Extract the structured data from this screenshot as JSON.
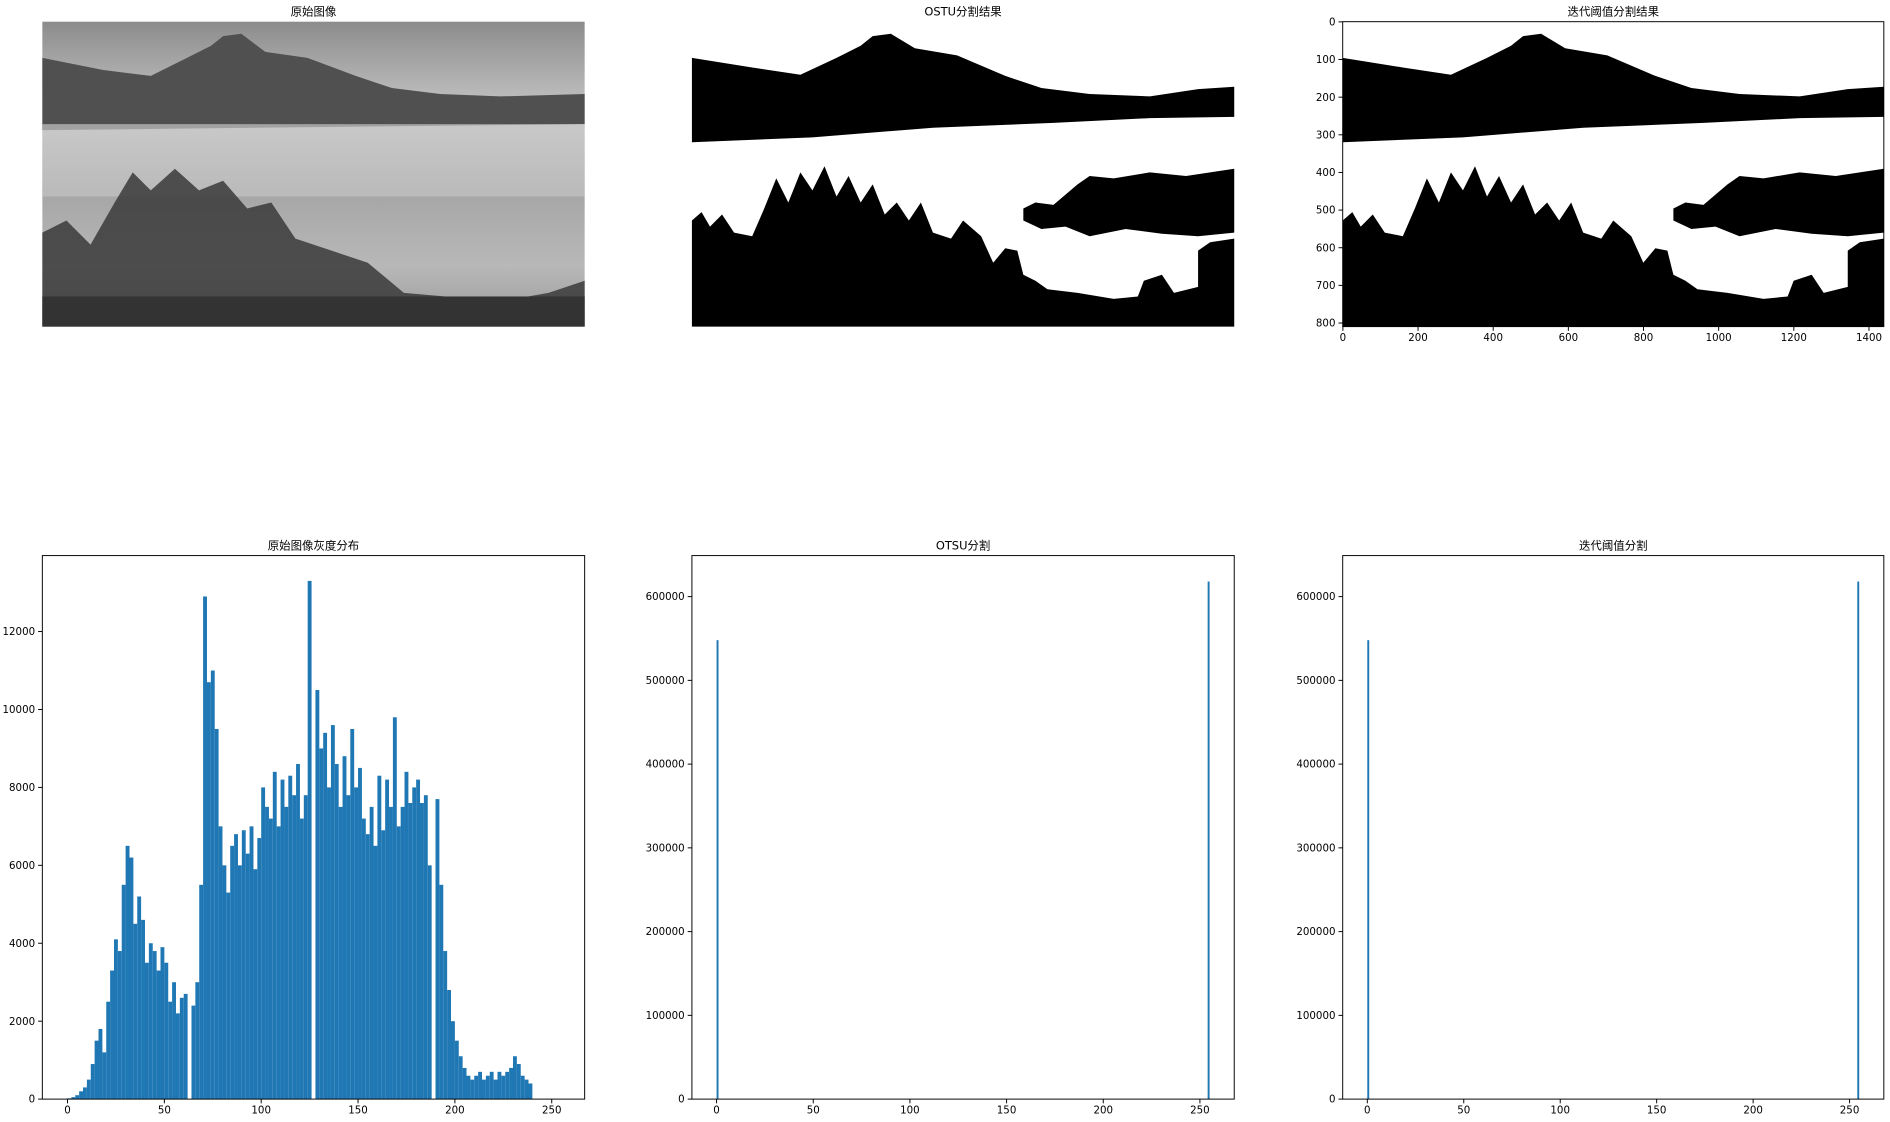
{
  "chart_data": [
    {
      "type": "image",
      "title": "原始图像"
    },
    {
      "type": "image",
      "title": "OSTU分割结果"
    },
    {
      "type": "image",
      "title": "迭代阈值分割结果",
      "xlim": [
        -0.5,
        1439.5
      ],
      "ylim": [
        809.5,
        -0.5
      ],
      "xticks": [
        0,
        200,
        400,
        600,
        800,
        1000,
        1200,
        1400
      ],
      "yticks": [
        0,
        100,
        200,
        300,
        400,
        500,
        600,
        700,
        800
      ]
    },
    {
      "type": "histogram",
      "title": "原始图像灰度分布",
      "color": "#1f77b4",
      "bins": [
        0,
        2,
        4,
        6,
        8,
        10,
        12,
        14,
        16,
        18,
        20,
        22,
        24,
        26,
        28,
        30,
        32,
        34,
        36,
        38,
        40,
        42,
        44,
        46,
        48,
        50,
        52,
        54,
        56,
        58,
        60,
        62,
        64,
        66,
        68,
        70,
        72,
        74,
        76,
        78,
        80,
        82,
        84,
        86,
        88,
        90,
        92,
        94,
        96,
        98,
        100,
        102,
        104,
        106,
        108,
        110,
        112,
        114,
        116,
        118,
        120,
        122,
        124,
        126,
        128,
        130,
        132,
        134,
        136,
        138,
        140,
        142,
        144,
        146,
        148,
        150,
        152,
        154,
        156,
        158,
        160,
        162,
        164,
        166,
        168,
        170,
        172,
        174,
        176,
        178,
        180,
        182,
        184,
        186,
        188,
        190,
        192,
        194,
        196,
        198,
        200,
        202,
        204,
        206,
        208,
        210,
        212,
        214,
        216,
        218,
        220,
        222,
        224,
        226,
        228,
        230,
        232,
        234,
        236,
        238,
        240
      ],
      "counts": [
        20,
        50,
        100,
        200,
        300,
        500,
        900,
        1500,
        1800,
        1200,
        2500,
        3300,
        4100,
        3800,
        5500,
        6500,
        6200,
        4500,
        5200,
        4600,
        3500,
        4000,
        3800,
        3300,
        3900,
        3500,
        2500,
        3000,
        2200,
        2600,
        2700,
        0,
        2400,
        3000,
        5500,
        12900,
        10700,
        11000,
        9500,
        7000,
        6000,
        5300,
        6500,
        6800,
        6000,
        6900,
        6300,
        7000,
        5900,
        6700,
        8000,
        7500,
        7200,
        8400,
        7000,
        8200,
        7500,
        8300,
        7800,
        8600,
        7200,
        7800,
        13300,
        0,
        10500,
        9000,
        9400,
        8000,
        9600,
        8600,
        7500,
        8800,
        7800,
        9500,
        8000,
        8500,
        7200,
        6800,
        7500,
        6500,
        8300,
        6900,
        8200,
        7500,
        9800,
        7000,
        7500,
        8400,
        7600,
        8000,
        8200,
        7600,
        7800,
        6000,
        0,
        7700,
        5500,
        3800,
        2800,
        2000,
        1500,
        1100,
        800,
        600,
        500,
        600,
        700,
        500,
        600,
        700,
        500,
        700,
        600,
        700,
        800,
        1100,
        900,
        600,
        500,
        400
      ],
      "xlim": [
        -13,
        267
      ],
      "ylim": [
        0,
        13950
      ],
      "xticks": [
        0,
        50,
        100,
        150,
        200,
        250
      ],
      "yticks": [
        0,
        2000,
        4000,
        6000,
        8000,
        10000,
        12000
      ]
    },
    {
      "type": "histogram",
      "title": "OTSU分割",
      "color": "#1f77b4",
      "bins": [
        0,
        1,
        254,
        255
      ],
      "counts": [
        548000,
        0,
        618000
      ],
      "xlim": [
        -12.75,
        267.75
      ],
      "ylim": [
        0,
        649000
      ],
      "xticks": [
        0,
        50,
        100,
        150,
        200,
        250
      ],
      "yticks": [
        0,
        100000,
        200000,
        300000,
        400000,
        500000,
        600000
      ]
    },
    {
      "type": "histogram",
      "title": "迭代阈值分割",
      "color": "#1f77b4",
      "bins": [
        0,
        1,
        254,
        255
      ],
      "counts": [
        548000,
        0,
        618000
      ],
      "xlim": [
        -12.75,
        267.75
      ],
      "ylim": [
        0,
        649000
      ],
      "xticks": [
        0,
        50,
        100,
        150,
        200,
        250
      ],
      "yticks": [
        0,
        100000,
        200000,
        300000,
        400000,
        500000,
        600000
      ]
    }
  ]
}
